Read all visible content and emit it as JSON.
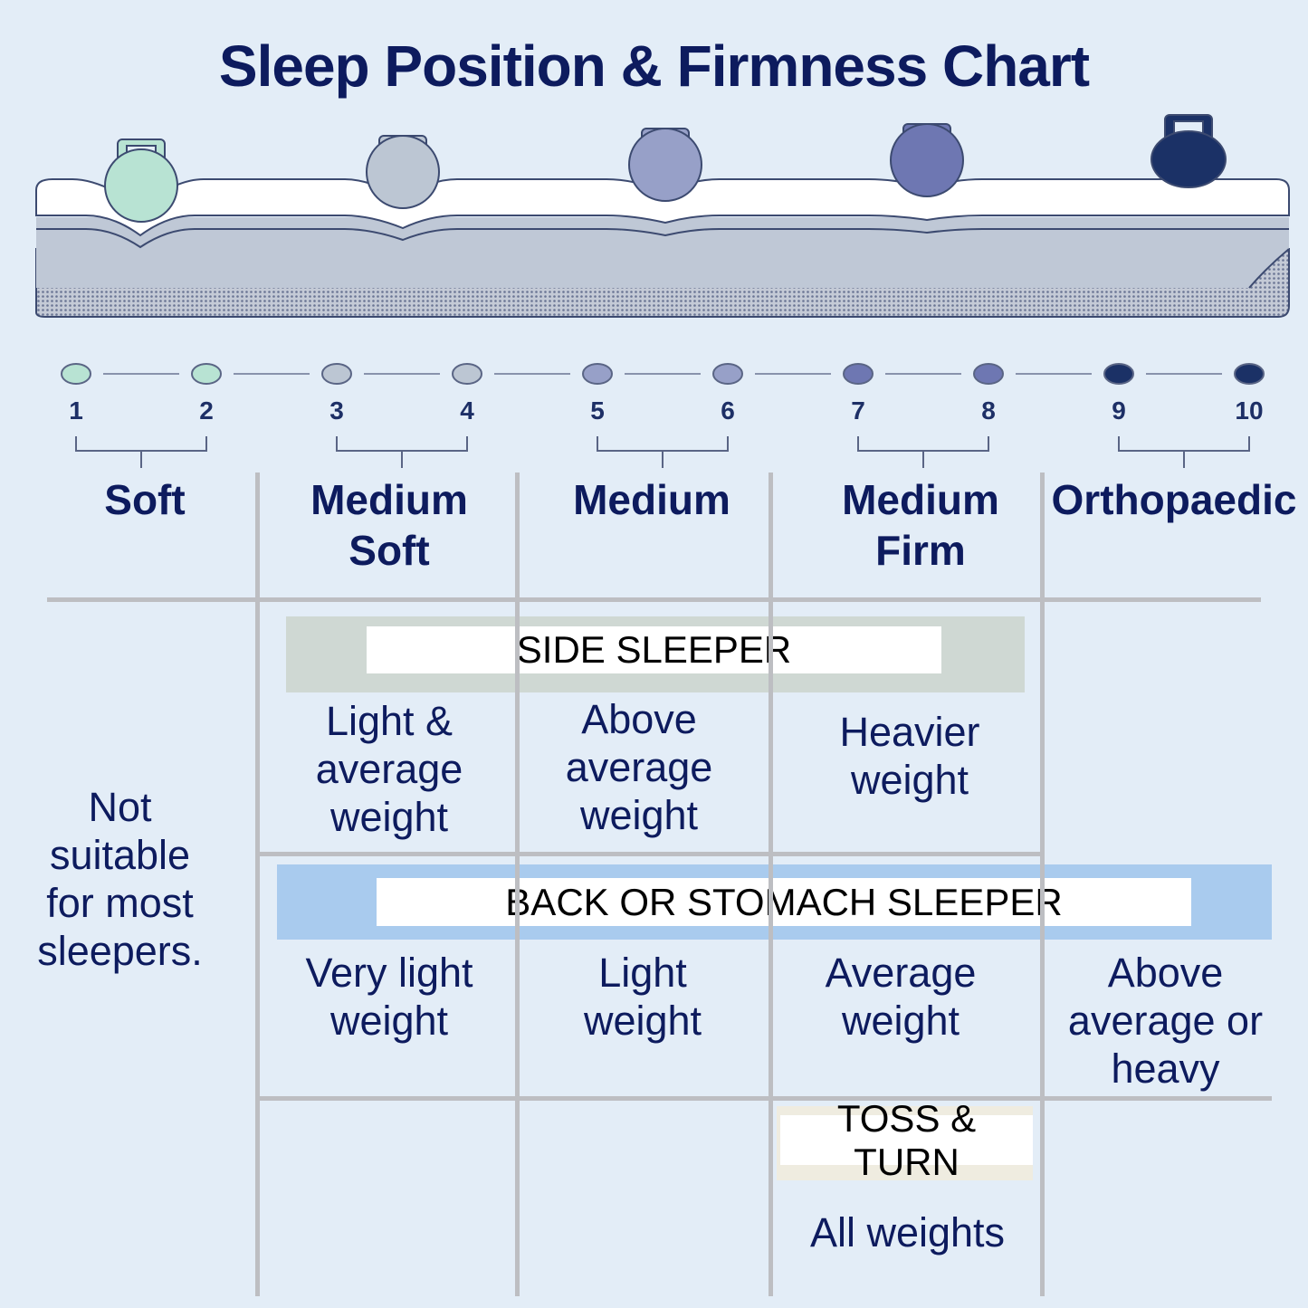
{
  "title": "Sleep Position & Firmness Chart",
  "colors": {
    "background": "#e3edf7",
    "text": "#0d1b5e",
    "side_band": "#cfd8d3",
    "back_band": "#a9cbee",
    "toss_band": "#efece0",
    "levels": [
      "#b8e3d3",
      "#bcc6d3",
      "#97a0c8",
      "#6e77b2",
      "#1b3166"
    ]
  },
  "scale": [
    "1",
    "2",
    "3",
    "4",
    "5",
    "6",
    "7",
    "8",
    "9",
    "10"
  ],
  "categories": [
    {
      "label": "Soft"
    },
    {
      "label": "Medium\nSoft"
    },
    {
      "label": "Medium"
    },
    {
      "label": "Medium\nFirm"
    },
    {
      "label": "Orthopaedic"
    }
  ],
  "not_suitable": "Not\nsuitable\nfor most\nsleepers.",
  "side_sleeper": {
    "label": "SIDE SLEEPER",
    "cells": [
      "Light &\naverage\nweight",
      "Above\naverage\nweight",
      "Heavier\nweight"
    ]
  },
  "back_sleeper": {
    "label": "BACK OR STOMACH SLEEPER",
    "cells": [
      "Very light\nweight",
      "Light\nweight",
      "Average\nweight",
      "Above\naverage or\nheavy"
    ]
  },
  "toss_turn": {
    "label": "TOSS & TURN",
    "cell": "All weights"
  }
}
